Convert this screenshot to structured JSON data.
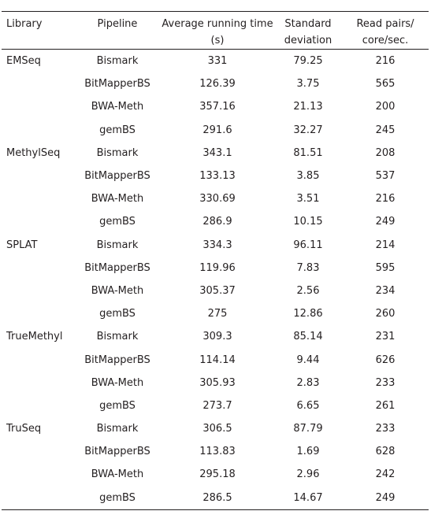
{
  "table": {
    "headers": {
      "library": "Library",
      "pipeline": "Pipeline",
      "avg": "Average running time (s)",
      "sd": "Standard deviation",
      "rp": "Read pairs/ core/sec."
    },
    "rows": [
      {
        "library": "EMSeq",
        "pipeline": "Bismark",
        "avg": "331",
        "sd": "79.25",
        "rp": "216"
      },
      {
        "library": "",
        "pipeline": "BitMapperBS",
        "avg": "126.39",
        "sd": "3.75",
        "rp": "565"
      },
      {
        "library": "",
        "pipeline": "BWA-Meth",
        "avg": "357.16",
        "sd": "21.13",
        "rp": "200"
      },
      {
        "library": "",
        "pipeline": "gemBS",
        "avg": "291.6",
        "sd": "32.27",
        "rp": "245"
      },
      {
        "library": "MethylSeq",
        "pipeline": "Bismark",
        "avg": "343.1",
        "sd": "81.51",
        "rp": "208"
      },
      {
        "library": "",
        "pipeline": "BitMapperBS",
        "avg": "133.13",
        "sd": "3.85",
        "rp": "537"
      },
      {
        "library": "",
        "pipeline": "BWA-Meth",
        "avg": "330.69",
        "sd": "3.51",
        "rp": "216"
      },
      {
        "library": "",
        "pipeline": "gemBS",
        "avg": "286.9",
        "sd": "10.15",
        "rp": "249"
      },
      {
        "library": "SPLAT",
        "pipeline": "Bismark",
        "avg": "334.3",
        "sd": "96.11",
        "rp": "214"
      },
      {
        "library": "",
        "pipeline": "BitMapperBS",
        "avg": "119.96",
        "sd": "7.83",
        "rp": "595"
      },
      {
        "library": "",
        "pipeline": "BWA-Meth",
        "avg": "305.37",
        "sd": "2.56",
        "rp": "234"
      },
      {
        "library": "",
        "pipeline": "gemBS",
        "avg": "275",
        "sd": "12.86",
        "rp": "260"
      },
      {
        "library": "TrueMethyl",
        "pipeline": "Bismark",
        "avg": "309.3",
        "sd": "85.14",
        "rp": "231"
      },
      {
        "library": "",
        "pipeline": "BitMapperBS",
        "avg": "114.14",
        "sd": "9.44",
        "rp": "626"
      },
      {
        "library": "",
        "pipeline": "BWA-Meth",
        "avg": "305.93",
        "sd": "2.83",
        "rp": "233"
      },
      {
        "library": "",
        "pipeline": "gemBS",
        "avg": "273.7",
        "sd": "6.65",
        "rp": "261"
      },
      {
        "library": "TruSeq",
        "pipeline": "Bismark",
        "avg": "306.5",
        "sd": "87.79",
        "rp": "233"
      },
      {
        "library": "",
        "pipeline": "BitMapperBS",
        "avg": "113.83",
        "sd": "1.69",
        "rp": "628"
      },
      {
        "library": "",
        "pipeline": "BWA-Meth",
        "avg": "295.18",
        "sd": "2.96",
        "rp": "242"
      },
      {
        "library": "",
        "pipeline": "gemBS",
        "avg": "286.5",
        "sd": "14.67",
        "rp": "249"
      }
    ]
  }
}
